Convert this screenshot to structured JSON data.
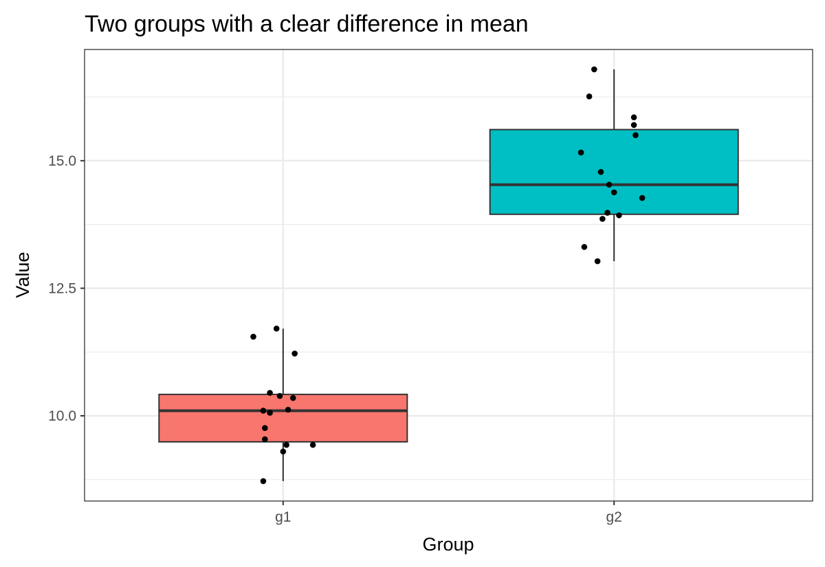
{
  "chart_data": {
    "type": "box",
    "title": "Two groups with a clear difference in mean",
    "xlabel": "Group",
    "ylabel": "Value",
    "categories": [
      "g1",
      "g2"
    ],
    "ylim": [
      8.33,
      17.18
    ],
    "yticks": [
      {
        "value": 10.0,
        "label": "10.0"
      },
      {
        "value": 12.5,
        "label": "12.5"
      },
      {
        "value": 15.0,
        "label": "15.0"
      }
    ],
    "yminor": [
      8.75,
      11.25,
      13.75,
      16.25
    ],
    "grid": true,
    "legend": "none",
    "boxes": [
      {
        "group": "g1",
        "color": "#F8766D",
        "lower_whisker": 8.72,
        "q1": 9.49,
        "median": 10.1,
        "q3": 10.42,
        "upper_whisker": 11.71
      },
      {
        "group": "g2",
        "color": "#00BFC4",
        "lower_whisker": 13.03,
        "q1": 13.95,
        "median": 14.53,
        "q3": 15.61,
        "upper_whisker": 16.79
      }
    ],
    "points": [
      {
        "group": "g1",
        "jitter": -0.02,
        "value": 11.71
      },
      {
        "group": "g1",
        "jitter": -0.09,
        "value": 11.55
      },
      {
        "group": "g1",
        "jitter": 0.035,
        "value": 11.22
      },
      {
        "group": "g1",
        "jitter": -0.04,
        "value": 10.45
      },
      {
        "group": "g1",
        "jitter": -0.01,
        "value": 10.39
      },
      {
        "group": "g1",
        "jitter": 0.03,
        "value": 10.35
      },
      {
        "group": "g1",
        "jitter": 0.015,
        "value": 10.12
      },
      {
        "group": "g1",
        "jitter": -0.06,
        "value": 10.1
      },
      {
        "group": "g1",
        "jitter": -0.04,
        "value": 10.06
      },
      {
        "group": "g1",
        "jitter": -0.055,
        "value": 9.76
      },
      {
        "group": "g1",
        "jitter": -0.055,
        "value": 9.54
      },
      {
        "group": "g1",
        "jitter": 0.01,
        "value": 9.43
      },
      {
        "group": "g1",
        "jitter": 0.09,
        "value": 9.43
      },
      {
        "group": "g1",
        "jitter": 0.0,
        "value": 9.3
      },
      {
        "group": "g1",
        "jitter": -0.06,
        "value": 8.72
      },
      {
        "group": "g2",
        "jitter": -0.06,
        "value": 16.79
      },
      {
        "group": "g2",
        "jitter": -0.075,
        "value": 16.26
      },
      {
        "group": "g2",
        "jitter": 0.06,
        "value": 15.85
      },
      {
        "group": "g2",
        "jitter": 0.06,
        "value": 15.7
      },
      {
        "group": "g2",
        "jitter": 0.065,
        "value": 15.5
      },
      {
        "group": "g2",
        "jitter": -0.1,
        "value": 15.16
      },
      {
        "group": "g2",
        "jitter": -0.04,
        "value": 14.78
      },
      {
        "group": "g2",
        "jitter": -0.015,
        "value": 14.53
      },
      {
        "group": "g2",
        "jitter": 0.0,
        "value": 14.38
      },
      {
        "group": "g2",
        "jitter": 0.085,
        "value": 14.27
      },
      {
        "group": "g2",
        "jitter": -0.02,
        "value": 13.98
      },
      {
        "group": "g2",
        "jitter": 0.015,
        "value": 13.93
      },
      {
        "group": "g2",
        "jitter": -0.035,
        "value": 13.86
      },
      {
        "group": "g2",
        "jitter": -0.09,
        "value": 13.31
      },
      {
        "group": "g2",
        "jitter": -0.05,
        "value": 13.03
      }
    ]
  }
}
